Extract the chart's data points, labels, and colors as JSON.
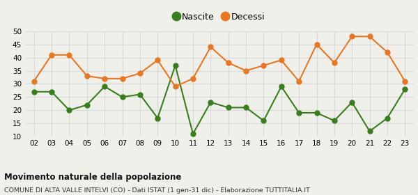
{
  "years": [
    "02",
    "03",
    "04",
    "05",
    "06",
    "07",
    "08",
    "09",
    "10",
    "11",
    "12",
    "13",
    "14",
    "15",
    "16",
    "17",
    "18",
    "19",
    "20",
    "21",
    "22",
    "23"
  ],
  "nascite": [
    27,
    27,
    20,
    22,
    29,
    25,
    26,
    17,
    37,
    11,
    23,
    21,
    21,
    16,
    29,
    19,
    19,
    16,
    23,
    12,
    17,
    28
  ],
  "decessi": [
    31,
    41,
    41,
    33,
    32,
    32,
    34,
    39,
    29,
    32,
    44,
    38,
    35,
    37,
    39,
    31,
    45,
    38,
    48,
    48,
    42,
    31
  ],
  "nascite_color": "#3a7d1e",
  "decessi_color": "#e87722",
  "title": "Movimento naturale della popolazione",
  "subtitle": "COMUNE DI ALTA VALLE INTELVI (CO) - Dati ISTAT (1 gen-31 dic) - Elaborazione TUTTITALIA.IT",
  "legend_nascite": "Nascite",
  "legend_decessi": "Decessi",
  "ylim": [
    10,
    50
  ],
  "yticks": [
    10,
    15,
    20,
    25,
    30,
    35,
    40,
    45,
    50
  ],
  "bg_color": "#f0f0eb",
  "grid_color": "#d8d8d8",
  "line_width": 1.5,
  "marker_size": 5
}
